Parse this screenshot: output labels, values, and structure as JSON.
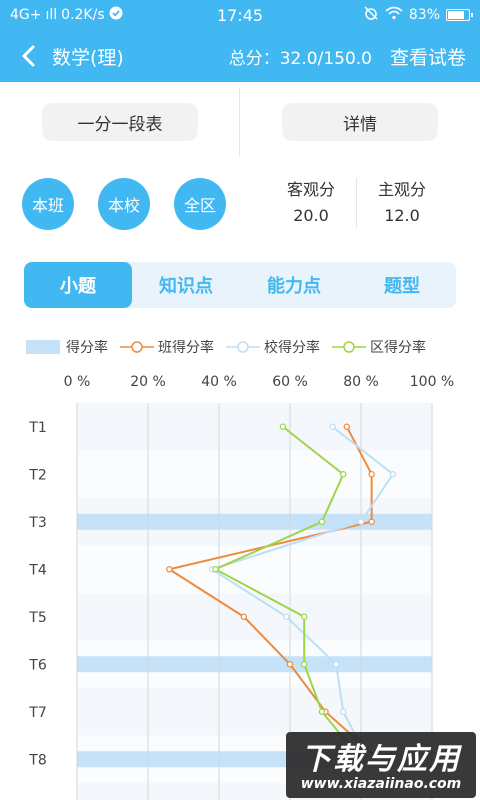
{
  "status_bar": {
    "network": "4G+",
    "signal": "ıll",
    "speed": "0.2K/s",
    "time": "17:45",
    "battery": "83%",
    "battery_level": 0.83
  },
  "header": {
    "title": "数学(理)",
    "total": "总分：32.0/150.0",
    "view_paper": "查看试卷"
  },
  "segment_buttons": [
    "一分一段表",
    "详情"
  ],
  "scope_buttons": [
    "本班",
    "本校",
    "全区"
  ],
  "scores": [
    {
      "label": "客观分",
      "value": "20.0"
    },
    {
      "label": "主观分",
      "value": "12.0"
    }
  ],
  "tabs": [
    {
      "label": "小题",
      "active": true
    },
    {
      "label": "知识点",
      "active": false
    },
    {
      "label": "能力点",
      "active": false
    },
    {
      "label": "题型",
      "active": false
    }
  ],
  "legend": [
    "得分率",
    "班得分率",
    "校得分率",
    "区得分率"
  ],
  "colors": {
    "accent": "#41b8f2",
    "bar": "#c5e2f9",
    "class_line": "#ee8a3c",
    "school_line": "#bcdff6",
    "district_line": "#9ed547"
  },
  "watermark": {
    "main": "下载与应用",
    "url": "www.xiazaiinao.com"
  },
  "chart_data": {
    "type": "bar",
    "orientation": "horizontal",
    "categories": [
      "T1",
      "T2",
      "T3",
      "T4",
      "T5",
      "T6",
      "T7",
      "T8"
    ],
    "x_ticks": [
      "0 %",
      "20 %",
      "40 %",
      "60 %",
      "80 %",
      "100 %"
    ],
    "xlim": [
      0,
      100
    ],
    "bar_series": {
      "name": "得分率",
      "values": [
        0,
        0,
        100,
        0,
        0,
        100,
        0,
        100
      ]
    },
    "line_series": [
      {
        "name": "班得分率",
        "values": [
          76,
          83,
          83,
          26,
          47,
          60,
          70,
          85
        ]
      },
      {
        "name": "校得分率",
        "values": [
          72,
          89,
          80,
          38,
          59,
          73,
          75,
          82
        ]
      },
      {
        "name": "区得分率",
        "values": [
          58,
          75,
          69,
          39,
          64,
          64,
          69,
          80
        ]
      }
    ]
  }
}
